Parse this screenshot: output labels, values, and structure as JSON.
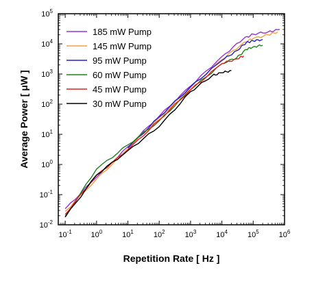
{
  "chart_data": {
    "type": "line",
    "xlabel": "Repetition Rate [ Hz ]",
    "ylabel": "Average Power [ μW ]",
    "x_scale": "log",
    "y_scale": "log",
    "xlim": [
      0.06,
      1000000
    ],
    "ylim": [
      0.01,
      100000
    ],
    "x_ticks": [
      0.1,
      1,
      10,
      100,
      1000,
      10000,
      100000,
      1000000
    ],
    "x_tick_labels": [
      [
        "10",
        "-1"
      ],
      [
        "10",
        "0"
      ],
      [
        "10",
        "1"
      ],
      [
        "10",
        "2"
      ],
      [
        "10",
        "3"
      ],
      [
        "10",
        "4"
      ],
      [
        "10",
        "5"
      ],
      [
        "10",
        "6"
      ]
    ],
    "y_ticks": [
      0.01,
      0.1,
      1,
      10,
      100,
      1000,
      10000,
      100000
    ],
    "y_tick_labels": [
      [
        "10",
        "-2"
      ],
      [
        "10",
        "-1"
      ],
      [
        "10",
        "0"
      ],
      [
        "10",
        "1"
      ],
      [
        "10",
        "2"
      ],
      [
        "10",
        "3"
      ],
      [
        "10",
        "4"
      ],
      [
        "10",
        "5"
      ]
    ],
    "grid": false,
    "legend_position": "top-left",
    "series": [
      {
        "name": "185 mW Pump",
        "color": "#9b30d0",
        "x": [
          0.1,
          1,
          10,
          100,
          1000,
          10000,
          50000,
          100000,
          300000,
          700000
        ],
        "y": [
          0.034,
          0.38,
          3.9,
          40,
          400,
          3800,
          15000,
          21000,
          25000,
          30000
        ]
      },
      {
        "name": "145 mW Pump",
        "color": "#f0a040",
        "x": [
          0.1,
          1,
          10,
          100,
          1000,
          10000,
          50000,
          100000,
          300000,
          600000
        ],
        "y": [
          0.028,
          0.33,
          3.3,
          35,
          350,
          3000,
          11000,
          15000,
          20000,
          25000
        ]
      },
      {
        "name": "95 mW Pump",
        "color": "#2020cc",
        "x": [
          10,
          100,
          1000,
          10000,
          30000,
          60000,
          100000,
          200000
        ],
        "y": [
          3.5,
          38,
          380,
          2800,
          6000,
          11000,
          12500,
          14000
        ]
      },
      {
        "name": "60 mW Pump",
        "color": "#208020",
        "x": [
          0.1,
          1,
          10,
          100,
          1000,
          10000,
          30000,
          60000,
          100000,
          200000
        ],
        "y": [
          0.019,
          0.7,
          4.5,
          28,
          300,
          2200,
          3500,
          6500,
          8000,
          9000
        ]
      },
      {
        "name": "45 mW Pump",
        "color": "#e02020",
        "x": [
          0.1,
          1,
          10,
          100,
          1000,
          10000,
          30000,
          50000
        ],
        "y": [
          0.022,
          0.45,
          3.0,
          30,
          300,
          2200,
          3200,
          4000
        ]
      },
      {
        "name": "30 mW Pump",
        "color": "#000000",
        "x": [
          0.1,
          1,
          10,
          100,
          1000,
          5000,
          10000,
          20000
        ],
        "y": [
          0.018,
          0.45,
          2.9,
          18,
          260,
          900,
          1100,
          1300
        ]
      }
    ]
  }
}
